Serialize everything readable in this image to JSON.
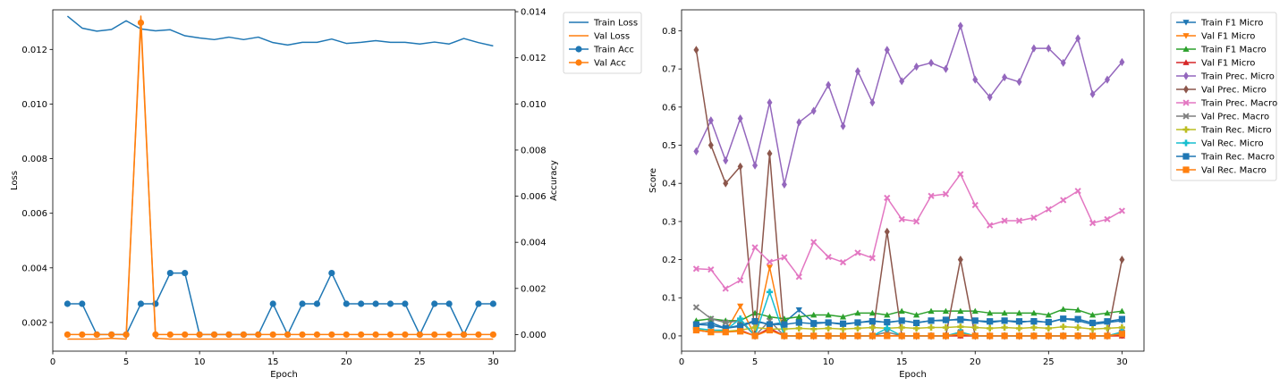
{
  "chart_data": [
    {
      "type": "line",
      "xlabel": "Epoch",
      "ylabel": "Loss",
      "ylabel_right": "Accuracy",
      "xlim": [
        0,
        31.5
      ],
      "ylim": [
        0.00095,
        0.01345
      ],
      "ylim_right": [
        -0.00072,
        0.01408
      ],
      "xticks": [
        0,
        5,
        10,
        15,
        20,
        25,
        30
      ],
      "yticks": [
        0.002,
        0.004,
        0.006,
        0.008,
        0.01,
        0.012
      ],
      "yticks_right": [
        0.0,
        0.002,
        0.004,
        0.006,
        0.008,
        0.01,
        0.012,
        0.014
      ],
      "legend_position": "outside-top-right",
      "x": [
        1,
        2,
        3,
        4,
        5,
        6,
        7,
        8,
        9,
        10,
        11,
        12,
        13,
        14,
        15,
        16,
        17,
        18,
        19,
        20,
        21,
        22,
        23,
        24,
        25,
        26,
        27,
        28,
        29,
        30
      ],
      "series": [
        {
          "name": "Train Loss",
          "axis": "left",
          "color": "#1f77b4",
          "marker": "none",
          "values": [
            0.01322,
            0.01278,
            0.01267,
            0.01273,
            0.01305,
            0.01275,
            0.01268,
            0.01272,
            0.0125,
            0.01242,
            0.01236,
            0.01245,
            0.01236,
            0.01245,
            0.01225,
            0.01216,
            0.01226,
            0.01226,
            0.01238,
            0.01222,
            0.01226,
            0.01232,
            0.01226,
            0.01226,
            0.0122,
            0.01227,
            0.0122,
            0.0124,
            0.01225,
            0.01213
          ]
        },
        {
          "name": "Val Loss",
          "axis": "left",
          "color": "#ff7f0e",
          "marker": "none",
          "values": [
            0.00139,
            0.00139,
            0.00139,
            0.00142,
            0.00139,
            0.01322,
            0.00142,
            0.00139,
            0.00139,
            0.00139,
            0.00139,
            0.00139,
            0.00139,
            0.00139,
            0.00139,
            0.00139,
            0.00139,
            0.00139,
            0.00139,
            0.00139,
            0.00139,
            0.00139,
            0.00139,
            0.00139,
            0.00139,
            0.00139,
            0.00139,
            0.00139,
            0.00139,
            0.00139
          ]
        },
        {
          "name": "Train Acc",
          "axis": "right",
          "color": "#1f77b4",
          "marker": "circle",
          "values": [
            0.001333,
            0.001333,
            0.0,
            0.0,
            0.0,
            0.001333,
            0.001333,
            0.002667,
            0.002667,
            0.0,
            0.0,
            0.0,
            0.0,
            0.0,
            0.001333,
            0.0,
            0.001333,
            0.001333,
            0.002667,
            0.001333,
            0.001333,
            0.001333,
            0.001333,
            0.001333,
            0.0,
            0.001333,
            0.001333,
            0.0,
            0.001333,
            0.001333
          ]
        },
        {
          "name": "Val Acc",
          "axis": "right",
          "color": "#ff7f0e",
          "marker": "circle",
          "values": [
            0.0,
            0.0,
            0.0,
            0.0,
            0.0,
            0.01352,
            0.0,
            0.0,
            0.0,
            0.0,
            0.0,
            0.0,
            0.0,
            0.0,
            0.0,
            0.0,
            0.0,
            0.0,
            0.0,
            0.0,
            0.0,
            0.0,
            0.0,
            0.0,
            0.0,
            0.0,
            0.0,
            0.0,
            0.0,
            0.0
          ]
        }
      ]
    },
    {
      "type": "line",
      "xlabel": "Epoch",
      "ylabel": "Score",
      "xlim": [
        0,
        31.5
      ],
      "ylim": [
        -0.04,
        0.855
      ],
      "xticks": [
        0,
        5,
        10,
        15,
        20,
        25,
        30
      ],
      "yticks": [
        0.0,
        0.1,
        0.2,
        0.3,
        0.4,
        0.5,
        0.6,
        0.7,
        0.8
      ],
      "legend_position": "outside-top-right",
      "x": [
        1,
        2,
        3,
        4,
        5,
        6,
        7,
        8,
        9,
        10,
        11,
        12,
        13,
        14,
        15,
        16,
        17,
        18,
        19,
        20,
        21,
        22,
        23,
        24,
        25,
        26,
        27,
        28,
        29,
        30
      ],
      "series": [
        {
          "name": "Train F1 Micro",
          "color": "#1f77b4",
          "marker": "triangle-down",
          "values": [
            0.03,
            0.035,
            0.02,
            0.028,
            0.04,
            0.03,
            0.035,
            0.068,
            0.035,
            0.035,
            0.03,
            0.035,
            0.04,
            0.035,
            0.04,
            0.035,
            0.04,
            0.04,
            0.045,
            0.04,
            0.035,
            0.04,
            0.035,
            0.04,
            0.035,
            0.045,
            0.04,
            0.03,
            0.035,
            0.04
          ]
        },
        {
          "name": "Val F1 Micro",
          "color": "#ff7f0e",
          "marker": "triangle-down",
          "values": [
            0.015,
            0.01,
            0.01,
            0.078,
            0.0,
            0.18,
            0.0,
            0.0,
            0.0,
            0.0,
            0.0,
            0.0,
            0.0,
            0.0,
            0.0,
            0.0,
            0.0,
            0.0,
            0.0,
            0.0,
            0.0,
            0.0,
            0.0,
            0.0,
            0.0,
            0.0,
            0.0,
            0.0,
            0.0,
            0.0
          ]
        },
        {
          "name": "Train F1 Macro",
          "color": "#2ca02c",
          "marker": "triangle-up",
          "values": [
            0.04,
            0.045,
            0.04,
            0.04,
            0.06,
            0.05,
            0.045,
            0.05,
            0.055,
            0.055,
            0.05,
            0.06,
            0.06,
            0.055,
            0.065,
            0.055,
            0.065,
            0.065,
            0.065,
            0.065,
            0.06,
            0.06,
            0.06,
            0.06,
            0.055,
            0.07,
            0.068,
            0.055,
            0.06,
            0.065
          ]
        },
        {
          "name": "Val F1 Micro",
          "color": "#d62728",
          "marker": "triangle-up",
          "values": [
            0.015,
            0.01,
            0.01,
            0.015,
            0.0,
            0.02,
            0.0,
            0.0,
            0.0,
            0.0,
            0.0,
            0.0,
            0.0,
            0.0,
            0.0,
            0.0,
            0.0,
            0.0,
            0.0,
            0.0,
            0.0,
            0.0,
            0.0,
            0.0,
            0.0,
            0.0,
            0.0,
            0.0,
            0.0,
            0.0
          ]
        },
        {
          "name": "Train Prec. Micro",
          "color": "#9467bd",
          "marker": "diamond",
          "values": [
            0.484,
            0.565,
            0.46,
            0.57,
            0.447,
            0.612,
            0.397,
            0.56,
            0.59,
            0.658,
            0.55,
            0.694,
            0.612,
            0.75,
            0.668,
            0.706,
            0.716,
            0.7,
            0.813,
            0.672,
            0.626,
            0.678,
            0.666,
            0.754,
            0.754,
            0.716,
            0.78,
            0.634,
            0.672,
            0.718
          ]
        },
        {
          "name": "Val Prec. Micro",
          "color": "#8c564b",
          "marker": "diamond",
          "values": [
            0.75,
            0.5,
            0.4,
            0.444,
            0.0,
            0.478,
            0.0,
            0.0,
            0.0,
            0.0,
            0.0,
            0.0,
            0.0,
            0.273,
            0.0,
            0.0,
            0.0,
            0.0,
            0.2,
            0.0,
            0.0,
            0.0,
            0.0,
            0.0,
            0.0,
            0.0,
            0.0,
            0.0,
            0.0,
            0.2
          ]
        },
        {
          "name": "Train Prec. Macro",
          "color": "#e377c2",
          "marker": "x-filled",
          "values": [
            0.176,
            0.174,
            0.124,
            0.146,
            0.232,
            0.194,
            0.206,
            0.155,
            0.246,
            0.207,
            0.193,
            0.218,
            0.204,
            0.362,
            0.306,
            0.3,
            0.367,
            0.372,
            0.424,
            0.343,
            0.29,
            0.302,
            0.302,
            0.31,
            0.332,
            0.356,
            0.38,
            0.296,
            0.306,
            0.328
          ]
        },
        {
          "name": "Val Prec. Macro",
          "color": "#7f7f7f",
          "marker": "x-filled",
          "values": [
            0.075,
            0.045,
            0.035,
            0.04,
            0.0,
            0.04,
            0.0,
            0.0,
            0.0,
            0.0,
            0.0,
            0.0,
            0.0,
            0.01,
            0.0,
            0.0,
            0.0,
            0.0,
            0.01,
            0.0,
            0.0,
            0.0,
            0.0,
            0.0,
            0.0,
            0.0,
            0.0,
            0.0,
            0.0,
            0.01
          ]
        },
        {
          "name": "Train Rec. Micro",
          "color": "#bcbd22",
          "marker": "plus-filled",
          "values": [
            0.018,
            0.015,
            0.012,
            0.015,
            0.022,
            0.018,
            0.018,
            0.02,
            0.018,
            0.02,
            0.018,
            0.02,
            0.022,
            0.02,
            0.022,
            0.02,
            0.022,
            0.022,
            0.024,
            0.022,
            0.02,
            0.022,
            0.02,
            0.022,
            0.02,
            0.024,
            0.022,
            0.018,
            0.02,
            0.022
          ]
        },
        {
          "name": "Val Rec. Micro",
          "color": "#17becf",
          "marker": "plus-filled",
          "values": [
            0.02,
            0.015,
            0.015,
            0.045,
            0.0,
            0.115,
            0.0,
            0.0,
            0.0,
            0.0,
            0.0,
            0.0,
            0.0,
            0.02,
            0.0,
            0.0,
            0.0,
            0.0,
            0.01,
            0.0,
            0.0,
            0.0,
            0.0,
            0.0,
            0.0,
            0.0,
            0.0,
            0.0,
            0.0,
            0.01
          ]
        },
        {
          "name": "Train Rec. Macro",
          "color": "#1f77b4",
          "marker": "square",
          "values": [
            0.03,
            0.028,
            0.02,
            0.025,
            0.038,
            0.03,
            0.03,
            0.035,
            0.032,
            0.035,
            0.032,
            0.035,
            0.038,
            0.036,
            0.04,
            0.034,
            0.04,
            0.042,
            0.042,
            0.04,
            0.038,
            0.04,
            0.038,
            0.038,
            0.036,
            0.045,
            0.044,
            0.034,
            0.038,
            0.044
          ]
        },
        {
          "name": "Val Rec. Macro",
          "color": "#ff7f0e",
          "marker": "square",
          "values": [
            0.015,
            0.01,
            0.01,
            0.012,
            0.0,
            0.015,
            0.0,
            0.0,
            0.0,
            0.0,
            0.0,
            0.0,
            0.0,
            0.0,
            0.0,
            0.0,
            0.0,
            0.0,
            0.005,
            0.0,
            0.0,
            0.0,
            0.0,
            0.0,
            0.0,
            0.0,
            0.0,
            0.0,
            0.0,
            0.005
          ]
        }
      ]
    }
  ]
}
